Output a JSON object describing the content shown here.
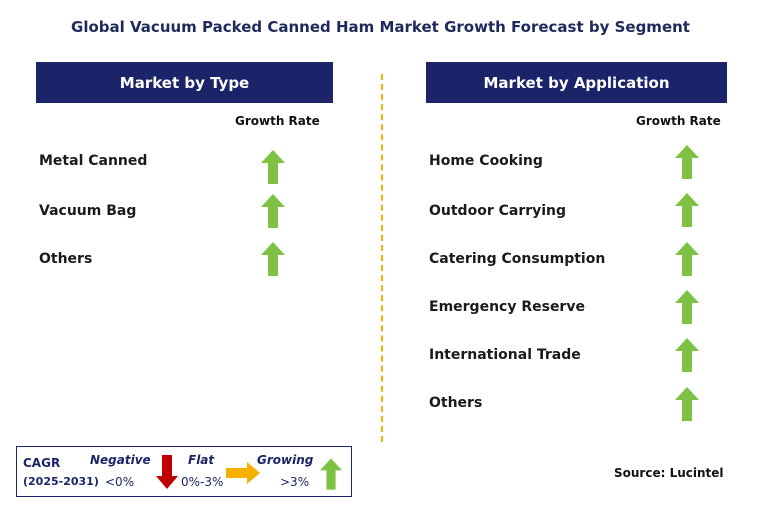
{
  "title": "Global Vacuum Packed Canned Ham Market Growth Forecast by Segment",
  "left_panel": {
    "header": "Market by Type",
    "growth_label": "Growth Rate",
    "items": [
      {
        "label": "Metal Canned",
        "trend": "growing"
      },
      {
        "label": "Vacuum Bag",
        "trend": "growing"
      },
      {
        "label": "Others",
        "trend": "growing"
      }
    ]
  },
  "right_panel": {
    "header": "Market by Application",
    "growth_label": "Growth Rate",
    "items": [
      {
        "label": "Home Cooking",
        "trend": "growing"
      },
      {
        "label": "Outdoor Carrying",
        "trend": "growing"
      },
      {
        "label": "Catering Consumption",
        "trend": "growing"
      },
      {
        "label": "Emergency Reserve",
        "trend": "growing"
      },
      {
        "label": "International Trade",
        "trend": "growing"
      },
      {
        "label": "Others",
        "trend": "growing"
      }
    ]
  },
  "legend": {
    "cagr": "CAGR",
    "years": "(2025-2031)",
    "negative_label": "Negative",
    "negative_value": "<0%",
    "flat_label": "Flat",
    "flat_value": "0%-3%",
    "growing_label": "Growing",
    "growing_value": ">3%"
  },
  "source": "Source: Lucintel",
  "colors": {
    "header_bg": "#1b2468",
    "growing": "#7dc242",
    "negative": "#c00000",
    "flat": "#f5b000",
    "divider": "#f5b000"
  },
  "icons": {
    "growing": "up-arrow-icon",
    "negative": "down-arrow-icon",
    "flat": "right-arrow-icon"
  }
}
